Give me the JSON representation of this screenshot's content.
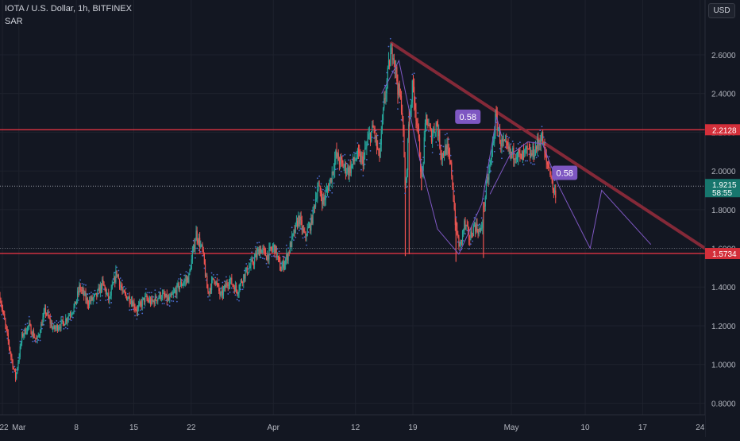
{
  "header": {
    "title": "IOTA / U.S. Dollar, 1h, BITFINEX",
    "indicator": "SAR",
    "currency_button": "USD"
  },
  "colors": {
    "background": "#131722",
    "up": "#26a69a",
    "down": "#ef5350",
    "sar": "#4b6bd0",
    "trendline": "#8b2a3a",
    "hline": "#f23645",
    "projection": "#7e57c2",
    "text": "#b2b5be"
  },
  "chart_data": {
    "type": "candlestick",
    "title": "IOTA / U.S. Dollar, 1h, BITFINEX",
    "indicator": "SAR",
    "ylim": [
      0.74,
      2.76
    ],
    "y_ticks": [
      0.8,
      1.0,
      1.2,
      1.4,
      1.6,
      1.8,
      2.0,
      2.2,
      2.4,
      2.6
    ],
    "y_tick_labels": [
      "0.8000",
      "1.0000",
      "1.2000",
      "1.4000",
      "1.6000",
      "1.8000",
      "2.0000",
      "2.2000",
      "2.4000",
      "2.6000"
    ],
    "x_ticks": [
      {
        "day": -1,
        "label": "22"
      },
      {
        "day": 1,
        "label": "Mar"
      },
      {
        "day": 8,
        "label": "8"
      },
      {
        "day": 15,
        "label": "15"
      },
      {
        "day": 22,
        "label": "22"
      },
      {
        "day": 32,
        "label": "Apr"
      },
      {
        "day": 42,
        "label": "12"
      },
      {
        "day": 49,
        "label": "19"
      },
      {
        "day": 61,
        "label": "May"
      },
      {
        "day": 70,
        "label": "10"
      },
      {
        "day": 77,
        "label": "17"
      },
      {
        "day": 84,
        "label": "24"
      }
    ],
    "x_range_days": [
      -1.3,
      84.6
    ],
    "price_path": [
      [
        -1.3,
        1.35
      ],
      [
        0,
        1.05
      ],
      [
        0.6,
        0.93
      ],
      [
        1.4,
        1.15
      ],
      [
        2.2,
        1.2
      ],
      [
        3.2,
        1.12
      ],
      [
        4.2,
        1.28
      ],
      [
        5.2,
        1.18
      ],
      [
        6.5,
        1.22
      ],
      [
        7.8,
        1.3
      ],
      [
        8.4,
        1.4
      ],
      [
        9.4,
        1.32
      ],
      [
        10.4,
        1.35
      ],
      [
        11.2,
        1.42
      ],
      [
        12,
        1.33
      ],
      [
        12.9,
        1.48
      ],
      [
        13.7,
        1.36
      ],
      [
        14.6,
        1.34
      ],
      [
        15.4,
        1.28
      ],
      [
        16.3,
        1.34
      ],
      [
        17.2,
        1.32
      ],
      [
        18.3,
        1.36
      ],
      [
        19.3,
        1.33
      ],
      [
        20.4,
        1.4
      ],
      [
        21.7,
        1.45
      ],
      [
        22.6,
        1.68
      ],
      [
        23.4,
        1.58
      ],
      [
        24,
        1.37
      ],
      [
        24.8,
        1.45
      ],
      [
        25.6,
        1.35
      ],
      [
        26.6,
        1.44
      ],
      [
        27.6,
        1.38
      ],
      [
        28.4,
        1.46
      ],
      [
        29.4,
        1.52
      ],
      [
        30.4,
        1.6
      ],
      [
        31.2,
        1.56
      ],
      [
        32.1,
        1.61
      ],
      [
        32.9,
        1.49
      ],
      [
        33.7,
        1.56
      ],
      [
        34.4,
        1.66
      ],
      [
        35.1,
        1.76
      ],
      [
        35.8,
        1.66
      ],
      [
        36.6,
        1.73
      ],
      [
        37.4,
        1.92
      ],
      [
        38.1,
        1.84
      ],
      [
        39,
        1.96
      ],
      [
        39.6,
        2.08
      ],
      [
        40.4,
        2.03
      ],
      [
        41.2,
        2.0
      ],
      [
        42.2,
        2.08
      ],
      [
        42.9,
        2.05
      ],
      [
        43.6,
        2.17
      ],
      [
        44.2,
        2.22
      ],
      [
        44.9,
        2.06
      ],
      [
        45.5,
        2.35
      ],
      [
        46.2,
        2.58
      ],
      [
        46.6,
        2.63
      ],
      [
        47.2,
        2.42
      ],
      [
        47.7,
        2.32
      ],
      [
        48.1,
        1.88
      ],
      [
        48.5,
        2.25
      ],
      [
        49,
        2.45
      ],
      [
        49.6,
        2.2
      ],
      [
        50.1,
        1.95
      ],
      [
        50.6,
        2.28
      ],
      [
        51.2,
        2.18
      ],
      [
        51.9,
        2.25
      ],
      [
        52.5,
        2.08
      ],
      [
        53.1,
        2.12
      ],
      [
        53.7,
        2.0
      ],
      [
        54.2,
        1.72
      ],
      [
        54.7,
        1.6
      ],
      [
        55.3,
        1.73
      ],
      [
        55.9,
        1.65
      ],
      [
        56.5,
        1.72
      ],
      [
        57.3,
        1.68
      ],
      [
        57.9,
        1.9
      ],
      [
        58.5,
        2.05
      ],
      [
        59.1,
        2.28
      ],
      [
        59.7,
        2.15
      ],
      [
        60.3,
        2.12
      ],
      [
        61,
        2.08
      ],
      [
        61.6,
        2.1
      ],
      [
        62.2,
        2.06
      ],
      [
        62.8,
        2.1
      ],
      [
        63.4,
        2.08
      ],
      [
        64,
        2.12
      ],
      [
        64.7,
        2.18
      ],
      [
        65.2,
        2.05
      ],
      [
        65.7,
        2.01
      ],
      [
        66.2,
        1.88
      ],
      [
        66.5,
        1.9
      ]
    ],
    "spikes": [
      [
        48.08,
        1.56
      ],
      [
        48.55,
        1.57
      ],
      [
        50.05,
        1.9
      ],
      [
        54.25,
        1.53
      ],
      [
        57.6,
        1.55
      ]
    ],
    "horizontal_lines": [
      {
        "price": 2.2128,
        "label": "2.2128",
        "style": "solid"
      },
      {
        "price": 1.5734,
        "label": "1.5734",
        "style": "solid"
      },
      {
        "price": 1.9215,
        "label": "1.9215",
        "sublabel": "58:55",
        "style": "dotted",
        "current": true
      },
      {
        "price": 1.6,
        "label": "1.6000",
        "style": "dotted"
      }
    ],
    "trendline": {
      "from": {
        "day": 46.4,
        "price": 2.66
      },
      "to": {
        "day": 84.6,
        "price": 1.6
      }
    },
    "projection_paths": [
      [
        [
          45.2,
          2.4
        ],
        [
          47.3,
          2.57
        ],
        [
          49.6,
          2.1
        ],
        [
          52,
          1.7
        ],
        [
          54.6,
          1.57
        ],
        [
          57.4,
          1.83
        ],
        [
          59.2,
          2.28
        ],
        [
          59.8,
          2.18
        ]
      ],
      [
        [
          58.4,
          1.88
        ],
        [
          60.8,
          2.08
        ],
        [
          63,
          2.15
        ],
        [
          64.8,
          2.14
        ],
        [
          66.8,
          1.92
        ],
        [
          70.6,
          1.6
        ],
        [
          72,
          1.9
        ],
        [
          78,
          1.62
        ]
      ]
    ],
    "callouts": [
      {
        "day": 55.7,
        "price": 2.28,
        "text": "0.58"
      },
      {
        "day": 67.5,
        "price": 1.99,
        "text": "0.58"
      }
    ]
  }
}
